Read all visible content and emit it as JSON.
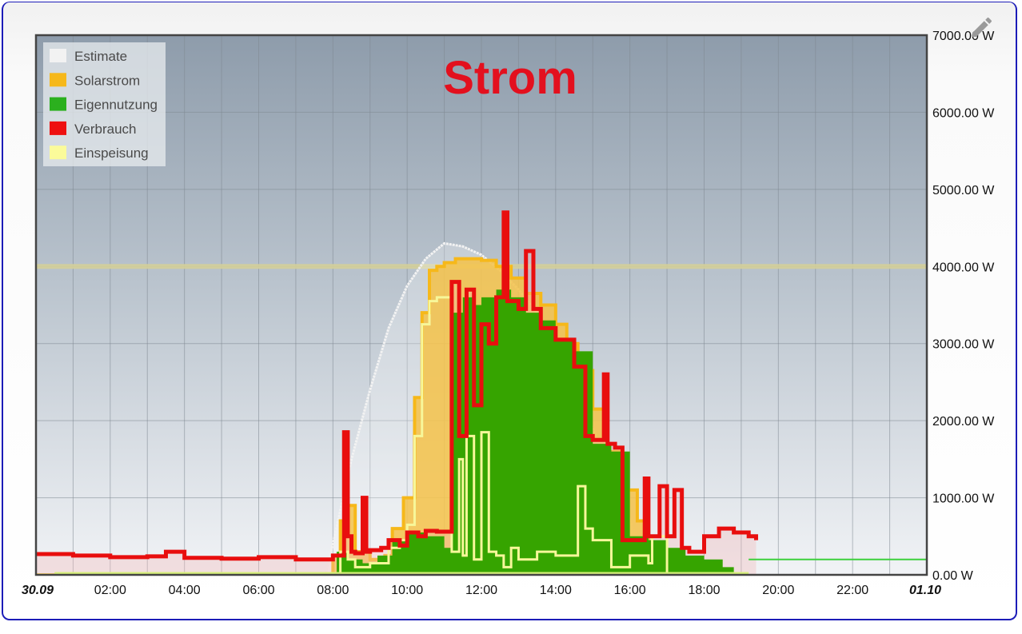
{
  "chart_data": {
    "type": "area",
    "title": "Strom",
    "title_color": "#e3101e",
    "xlabel": "",
    "ylabel": "",
    "x_unit": "hours",
    "xlim": [
      0,
      24
    ],
    "ylim": [
      0,
      7000
    ],
    "x_ticks": [
      {
        "x": 0,
        "label": "30.09",
        "bold": true
      },
      {
        "x": 2,
        "label": "02:00"
      },
      {
        "x": 4,
        "label": "04:00"
      },
      {
        "x": 6,
        "label": "06:00"
      },
      {
        "x": 8,
        "label": "08:00"
      },
      {
        "x": 10,
        "label": "10:00"
      },
      {
        "x": 12,
        "label": "12:00"
      },
      {
        "x": 14,
        "label": "14:00"
      },
      {
        "x": 16,
        "label": "16:00"
      },
      {
        "x": 18,
        "label": "18:00"
      },
      {
        "x": 20,
        "label": "20:00"
      },
      {
        "x": 22,
        "label": "22:00"
      },
      {
        "x": 24,
        "label": "01.10",
        "bold": true
      }
    ],
    "y_ticks": [
      {
        "y": 0,
        "label": "0.00 W"
      },
      {
        "y": 1000,
        "label": "1000.00 W"
      },
      {
        "y": 2000,
        "label": "2000.00 W"
      },
      {
        "y": 3000,
        "label": "3000.00 W"
      },
      {
        "y": 4000,
        "label": "4000.00 W"
      },
      {
        "y": 5000,
        "label": "5000.00 W"
      },
      {
        "y": 6000,
        "label": "6000.00 W"
      },
      {
        "y": 7000,
        "label": "7000.00 W"
      }
    ],
    "y_axis_position": "right",
    "grid": true,
    "legend_position": "top-left",
    "reference_line": {
      "y": 4000,
      "color": "#d4cf9a"
    },
    "series": [
      {
        "name": "Estimate",
        "color": "#f2f2f2",
        "x": [
          0,
          7.8,
          8.0,
          8.5,
          9.0,
          9.5,
          10.0,
          10.5,
          11.0,
          11.5,
          12.0,
          12.5,
          13.0,
          13.5,
          14.0,
          14.5,
          15.0,
          15.5,
          16.0,
          16.3,
          16.6
        ],
        "values": [
          0,
          0,
          400,
          1500,
          2400,
          3200,
          3750,
          4100,
          4300,
          4260,
          4150,
          3950,
          3700,
          3400,
          3000,
          2500,
          1900,
          1300,
          700,
          350,
          0
        ]
      },
      {
        "name": "Solarstrom",
        "color": "#f6b81a",
        "x": [
          0,
          7.9,
          8.0,
          8.2,
          8.4,
          8.6,
          9.0,
          9.4,
          9.6,
          9.9,
          10.2,
          10.4,
          10.6,
          10.8,
          11.0,
          11.3,
          11.6,
          12.0,
          12.4,
          12.8,
          13.2,
          13.6,
          14.0,
          14.3,
          14.6,
          15.0,
          15.4,
          15.8,
          16.2,
          16.5,
          16.8,
          17.0
        ],
        "values": [
          0,
          0,
          250,
          700,
          900,
          300,
          200,
          250,
          600,
          1000,
          2300,
          3400,
          3950,
          4000,
          4050,
          4100,
          4100,
          4080,
          4000,
          3850,
          3650,
          3500,
          3250,
          3000,
          2650,
          2150,
          1600,
          1100,
          700,
          350,
          150,
          0
        ]
      },
      {
        "name": "Eigennutzung",
        "color": "#36a400",
        "x": [
          0,
          7.9,
          8.1,
          8.4,
          8.8,
          9.2,
          9.6,
          10.0,
          10.5,
          11.0,
          11.2,
          11.5,
          11.8,
          12.0,
          12.4,
          12.8,
          13.2,
          13.6,
          14.0,
          14.5,
          15.0,
          15.5,
          16.0,
          16.5,
          17.0,
          17.5,
          18.0,
          18.5,
          18.8
        ],
        "values": [
          0,
          0,
          300,
          200,
          150,
          250,
          450,
          550,
          500,
          350,
          3400,
          3600,
          3500,
          3600,
          3700,
          3600,
          3400,
          3300,
          3050,
          2900,
          1700,
          1600,
          500,
          450,
          350,
          250,
          200,
          100,
          0
        ]
      },
      {
        "name": "Verbrauch",
        "color": "#e80e0e",
        "x": [
          0,
          1.0,
          2.0,
          3.0,
          3.5,
          4.0,
          5.0,
          6.0,
          7.0,
          8.0,
          8.3,
          8.4,
          8.5,
          8.6,
          8.8,
          8.9,
          9.0,
          9.3,
          9.5,
          9.8,
          10.0,
          10.3,
          10.5,
          10.8,
          11.2,
          11.4,
          11.6,
          11.8,
          12.0,
          12.2,
          12.4,
          12.6,
          12.7,
          13.0,
          13.2,
          13.4,
          13.6,
          14.0,
          14.5,
          14.8,
          15.0,
          15.3,
          15.4,
          15.6,
          15.8,
          16.0,
          16.4,
          16.5,
          16.8,
          17.0,
          17.2,
          17.4,
          17.6,
          18.0,
          18.4,
          18.8,
          19.2,
          19.4
        ],
        "values": [
          270,
          250,
          230,
          240,
          300,
          220,
          210,
          230,
          200,
          250,
          1850,
          500,
          300,
          280,
          1000,
          300,
          320,
          350,
          450,
          380,
          550,
          500,
          570,
          560,
          3800,
          1800,
          3700,
          2200,
          3250,
          3000,
          3600,
          4700,
          3550,
          3450,
          4200,
          3450,
          3200,
          3050,
          2700,
          1800,
          1750,
          2600,
          1700,
          1650,
          450,
          450,
          1250,
          500,
          1150,
          500,
          1100,
          350,
          300,
          500,
          600,
          550,
          500,
          450
        ]
      },
      {
        "name": "Einspeisung",
        "color": "#f7f79a",
        "x": [
          0,
          8.0,
          8.2,
          8.4,
          8.6,
          9.0,
          9.5,
          9.8,
          10.0,
          10.2,
          10.4,
          10.6,
          10.8,
          11.0,
          11.2,
          11.4,
          11.5,
          11.6,
          11.8,
          12.0,
          12.2,
          12.4,
          12.6,
          12.8,
          13.0,
          13.5,
          14.0,
          14.6,
          14.8,
          15.0,
          15.5,
          16.0,
          16.5,
          16.6,
          17.0
        ],
        "values": [
          0,
          0,
          300,
          200,
          100,
          150,
          350,
          450,
          650,
          1800,
          3250,
          3550,
          3600,
          3600,
          300,
          1500,
          250,
          1800,
          200,
          1850,
          300,
          250,
          100,
          350,
          200,
          300,
          250,
          1150,
          600,
          450,
          100,
          250,
          150,
          500,
          0
        ]
      }
    ],
    "annotations": [
      {
        "type": "line",
        "color": "#3cd03c",
        "y": 200,
        "from_x": 19.2,
        "to_x": 24
      }
    ]
  }
}
